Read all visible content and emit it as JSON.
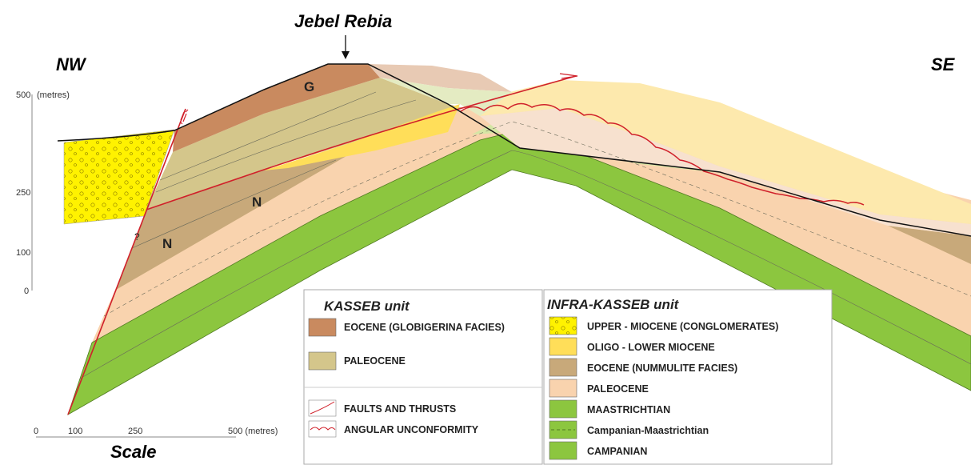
{
  "orientation": {
    "left": "NW",
    "right": "SE"
  },
  "summit": "Jebel Rebia",
  "formation_letters": [
    "G",
    "N",
    "N"
  ],
  "question_mark": "?",
  "vertical_scale": {
    "unit": "(metres)",
    "ticks": [
      "500",
      "250",
      "100",
      "0"
    ]
  },
  "horizontal_scale": {
    "title": "Scale",
    "ticks": [
      "0",
      "100",
      "250",
      "500 (metres)"
    ]
  },
  "legend": {
    "kasseb": {
      "title": "KASSEB unit",
      "items": [
        "EOCENE (GLOBIGERINA FACIES)",
        "PALEOCENE"
      ]
    },
    "symbols": [
      "FAULTS AND THRUSTS",
      "ANGULAR UNCONFORMITY"
    ],
    "infra_kasseb": {
      "title": "INFRA-KASSEB unit",
      "items": [
        "UPPER - MIOCENE (CONGLOMERATES)",
        "OLIGO - LOWER MIOCENE",
        "EOCENE (NUMMULITE FACIES)",
        "PALEOCENE",
        "MAASTRICHTIAN",
        "Campanian-Maastrichtian",
        "CAMPANIAN"
      ]
    }
  }
}
